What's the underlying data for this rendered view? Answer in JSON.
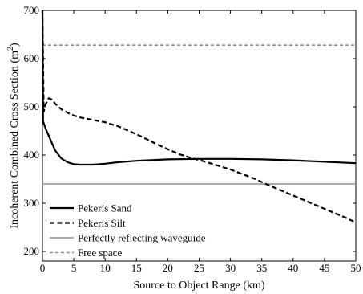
{
  "chart_data": {
    "type": "line",
    "title": "",
    "xlabel": "Source to Object Range (km)",
    "ylabel_main": "Incoherent Combined Cross Section (m",
    "ylabel_sup": "2",
    "ylabel_close": ")",
    "xlim": [
      0,
      50
    ],
    "ylim": [
      180,
      700
    ],
    "xticks": [
      "0",
      "5",
      "10",
      "15",
      "20",
      "25",
      "30",
      "35",
      "40",
      "45",
      "50"
    ],
    "yticks": [
      "200",
      "300",
      "400",
      "500",
      "600",
      "700"
    ],
    "grid": false,
    "legend_position": "bottom-left",
    "series": [
      {
        "name": "Pekeris Sand",
        "style": "solid",
        "color": "#000000",
        "points": [
          [
            0,
            700
          ],
          [
            0.1,
            470
          ],
          [
            0.5,
            455
          ],
          [
            1,
            440
          ],
          [
            2,
            410
          ],
          [
            3,
            393
          ],
          [
            4,
            385
          ],
          [
            5,
            381
          ],
          [
            6,
            380
          ],
          [
            7,
            380
          ],
          [
            8,
            380
          ],
          [
            10,
            382
          ],
          [
            12,
            385
          ],
          [
            15,
            388
          ],
          [
            20,
            391
          ],
          [
            25,
            392
          ],
          [
            30,
            392
          ],
          [
            35,
            391
          ],
          [
            40,
            389
          ],
          [
            45,
            386
          ],
          [
            50,
            383
          ]
        ]
      },
      {
        "name": "Pekeris Silt",
        "style": "dashed",
        "color": "#000000",
        "points": [
          [
            0,
            700
          ],
          [
            0.2,
            490
          ],
          [
            0.5,
            505
          ],
          [
            1,
            518
          ],
          [
            1.5,
            515
          ],
          [
            2,
            507
          ],
          [
            3,
            495
          ],
          [
            4,
            488
          ],
          [
            5,
            482
          ],
          [
            6,
            478
          ],
          [
            8,
            473
          ],
          [
            10,
            468
          ],
          [
            12,
            460
          ],
          [
            14,
            449
          ],
          [
            16,
            437
          ],
          [
            18,
            424
          ],
          [
            20,
            412
          ],
          [
            22,
            401
          ],
          [
            24,
            393
          ],
          [
            26,
            386
          ],
          [
            28,
            378
          ],
          [
            30,
            370
          ],
          [
            32,
            360
          ],
          [
            34,
            350
          ],
          [
            36,
            338
          ],
          [
            38,
            327
          ],
          [
            40,
            316
          ],
          [
            42,
            305
          ],
          [
            44,
            294
          ],
          [
            46,
            283
          ],
          [
            48,
            272
          ],
          [
            50,
            260
          ]
        ]
      },
      {
        "name": "Perfectly reflecting waveguide",
        "style": "solid",
        "color": "#8f8f8f",
        "points": [
          [
            0,
            340
          ],
          [
            50,
            340
          ]
        ]
      },
      {
        "name": "Free space",
        "style": "dashed",
        "color": "#8f8f8f",
        "points": [
          [
            0,
            628
          ],
          [
            50,
            628
          ]
        ]
      }
    ]
  }
}
